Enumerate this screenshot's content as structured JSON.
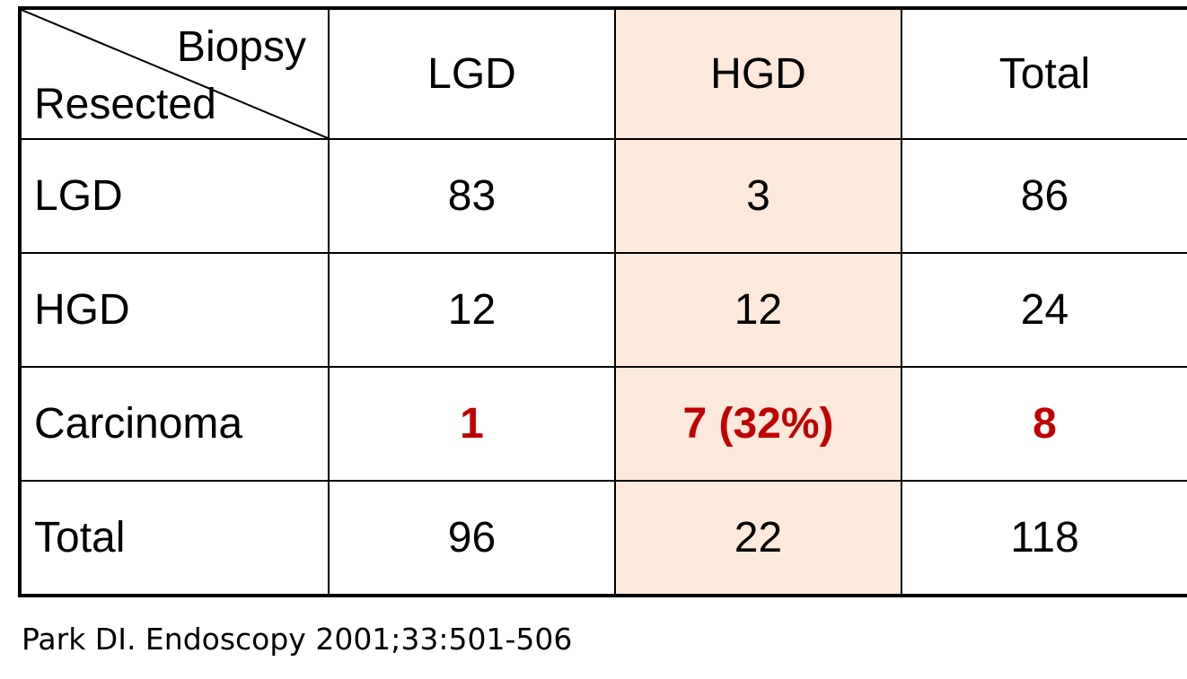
{
  "table": {
    "corner": {
      "column_axis_label": "Biopsy",
      "row_axis_label": "Resected"
    },
    "columns": [
      "LGD",
      "HGD",
      "Total"
    ],
    "highlighted_column": "HGD",
    "highlight_color": "#fde9dc",
    "emphasis_color": "#c00000",
    "rows": [
      {
        "label": "LGD",
        "cells": [
          "83",
          "3",
          "86"
        ]
      },
      {
        "label": "HGD",
        "cells": [
          "12",
          "12",
          "24"
        ]
      },
      {
        "label": "Carcinoma",
        "cells": [
          "1",
          "7 (32%)",
          "8"
        ],
        "emphasized": true
      },
      {
        "label": "Total",
        "cells": [
          "96",
          "22",
          "118"
        ]
      }
    ]
  },
  "citation": "Park DI. Endoscopy 2001;33:501-506"
}
